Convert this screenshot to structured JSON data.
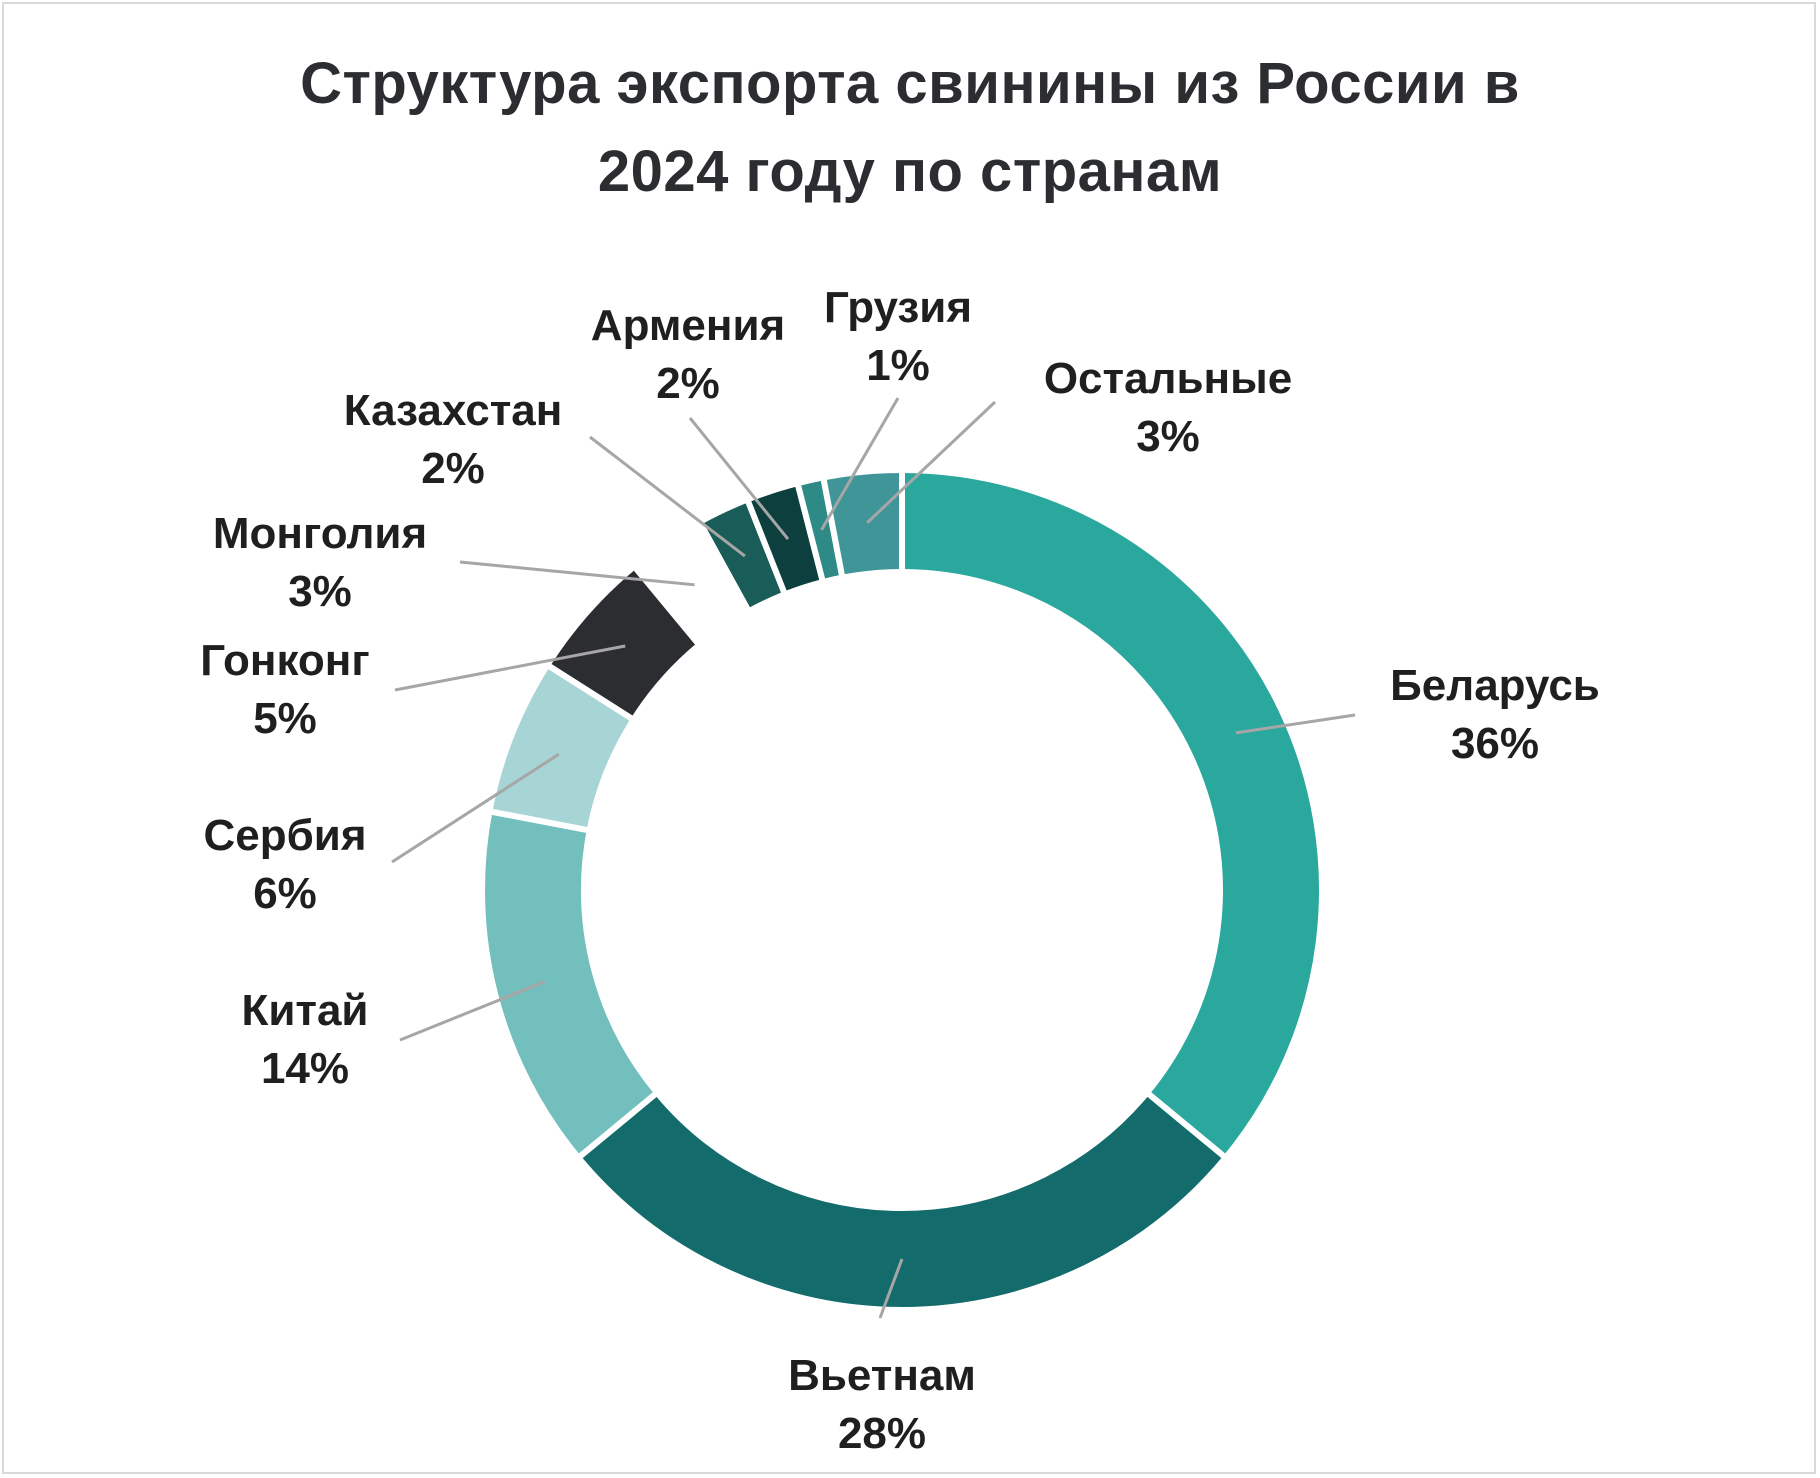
{
  "chart_data": {
    "type": "pie",
    "title_lines": [
      "Структура экспорта свинины из России в",
      "2024 году по странам"
    ],
    "donut": true,
    "slices": [
      {
        "label": "Беларусь",
        "percent_label": "36%",
        "value": 36,
        "color": "#2aa89d"
      },
      {
        "label": "Вьетнам",
        "percent_label": "28%",
        "value": 28,
        "color": "#136b6c"
      },
      {
        "label": "Китай",
        "percent_label": "14%",
        "value": 14,
        "color": "#72bfbd"
      },
      {
        "label": "Сербия",
        "percent_label": "6%",
        "value": 6,
        "color": "#a7d5d6"
      },
      {
        "label": "Гонконг",
        "percent_label": "5%",
        "value": 5,
        "color": "#2b2d31"
      },
      {
        "label": "Монголия",
        "percent_label": "3%",
        "value": 3,
        "color": "#ffffff"
      },
      {
        "label": "Казахстан",
        "percent_label": "2%",
        "value": 2,
        "color": "#1a5c58"
      },
      {
        "label": "Армения",
        "percent_label": "2%",
        "value": 2,
        "color": "#0d3f3e"
      },
      {
        "label": "Грузия",
        "percent_label": "1%",
        "value": 1,
        "color": "#2e8a86"
      },
      {
        "label": "Остальные",
        "percent_label": "3%",
        "value": 3,
        "color": "#3f9598"
      }
    ]
  }
}
